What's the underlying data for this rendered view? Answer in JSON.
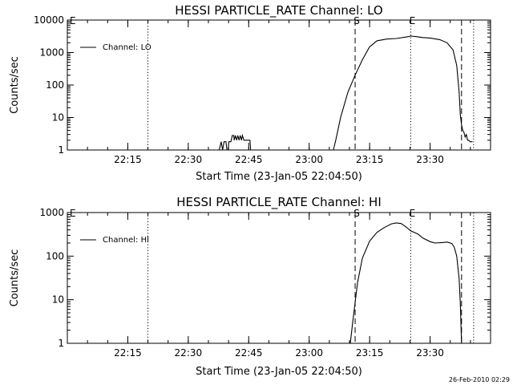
{
  "footer_timestamp": "26-Feb-2010 02:29",
  "chart_data": [
    {
      "type": "line",
      "title": "HESSI PARTICLE_RATE Channel: LO",
      "xlabel": "Start Time (23-Jan-05 22:04:50)",
      "ylabel": "Counts/sec",
      "y_scale": "log",
      "ylim": [
        1,
        10000
      ],
      "xlim_minutes": [
        22.0,
        23.75
      ],
      "x_ticks": [
        {
          "t": 22.25,
          "label": "22:15"
        },
        {
          "t": 22.5,
          "label": "22:30"
        },
        {
          "t": 22.75,
          "label": "22:45"
        },
        {
          "t": 23.0,
          "label": "23:00"
        },
        {
          "t": 23.25,
          "label": "23:15"
        },
        {
          "t": 23.5,
          "label": "23:30"
        }
      ],
      "y_ticks": [
        {
          "v": 1,
          "label": "1"
        },
        {
          "v": 10,
          "label": "10"
        },
        {
          "v": 100,
          "label": "100"
        },
        {
          "v": 1000,
          "label": "1000"
        },
        {
          "v": 10000,
          "label": "10000"
        }
      ],
      "legend": {
        "entry": "Channel: LO",
        "placement": "top-left"
      },
      "markers": [
        {
          "t": 22.333,
          "style": "dotted",
          "label": ""
        },
        {
          "t": 23.19,
          "style": "dashed",
          "label": "S"
        },
        {
          "t": 23.42,
          "style": "dotted",
          "label": "E"
        },
        {
          "t": 23.63,
          "style": "dashed",
          "label": ""
        },
        {
          "t": 23.68,
          "style": "dotted",
          "label": ""
        }
      ],
      "corner_mark": "E",
      "series": [
        {
          "name": "Channel: LO",
          "segments": [
            [
              [
                22.628,
                1
              ],
              [
                22.636,
                1.8
              ],
              [
                22.642,
                1
              ],
              [
                22.648,
                1.8
              ],
              [
                22.656,
                1.8
              ],
              [
                22.66,
                1
              ],
              [
                22.665,
                1
              ],
              [
                22.668,
                1.8
              ],
              [
                22.676,
                1.8
              ],
              [
                22.682,
                2.8
              ],
              [
                22.688,
                2.8
              ],
              [
                22.69,
                2.0
              ],
              [
                22.695,
                2.8
              ],
              [
                22.7,
                2.0
              ],
              [
                22.705,
                2.8
              ],
              [
                22.71,
                2.0
              ],
              [
                22.715,
                2.8
              ],
              [
                22.72,
                2.0
              ],
              [
                22.724,
                2.8
              ],
              [
                22.73,
                2.0
              ],
              [
                22.736,
                2.0
              ],
              [
                22.74,
                2.0
              ],
              [
                22.75,
                2.0
              ],
              [
                22.755,
                2.0
              ],
              [
                22.758,
                1
              ]
            ],
            [
              [
                23.1,
                1
              ],
              [
                23.11,
                2
              ],
              [
                23.13,
                10
              ],
              [
                23.16,
                60
              ],
              [
                23.19,
                200
              ],
              [
                23.22,
                600
              ],
              [
                23.25,
                1500
              ],
              [
                23.28,
                2300
              ],
              [
                23.32,
                2600
              ],
              [
                23.36,
                2700
              ],
              [
                23.4,
                3000
              ],
              [
                23.42,
                3200
              ],
              [
                23.44,
                3100
              ],
              [
                23.47,
                2900
              ],
              [
                23.5,
                2800
              ],
              [
                23.54,
                2500
              ],
              [
                23.57,
                2000
              ],
              [
                23.595,
                1200
              ],
              [
                23.61,
                400
              ],
              [
                23.62,
                60
              ],
              [
                23.625,
                12
              ],
              [
                23.63,
                6
              ],
              [
                23.635,
                4
              ],
              [
                23.64,
                3.5
              ],
              [
                23.645,
                2.5
              ],
              [
                23.65,
                3
              ],
              [
                23.655,
                2
              ],
              [
                23.66,
                2
              ],
              [
                23.665,
                1.8
              ],
              [
                23.675,
                1.8
              ]
            ]
          ]
        }
      ]
    },
    {
      "type": "line",
      "title": "HESSI PARTICLE_RATE Channel: HI",
      "xlabel": "Start Time (23-Jan-05 22:04:50)",
      "ylabel": "Counts/sec",
      "y_scale": "log",
      "ylim": [
        1,
        1000
      ],
      "xlim_minutes": [
        22.0,
        23.75
      ],
      "x_ticks": [
        {
          "t": 22.25,
          "label": "22:15"
        },
        {
          "t": 22.5,
          "label": "22:30"
        },
        {
          "t": 22.75,
          "label": "22:45"
        },
        {
          "t": 23.0,
          "label": "23:00"
        },
        {
          "t": 23.25,
          "label": "23:15"
        },
        {
          "t": 23.5,
          "label": "23:30"
        }
      ],
      "y_ticks": [
        {
          "v": 1,
          "label": "1"
        },
        {
          "v": 10,
          "label": "10"
        },
        {
          "v": 100,
          "label": "100"
        },
        {
          "v": 1000,
          "label": "1000"
        }
      ],
      "legend": {
        "entry": "Channel: HI",
        "placement": "top-left"
      },
      "markers": [
        {
          "t": 22.333,
          "style": "dotted",
          "label": ""
        },
        {
          "t": 23.19,
          "style": "dashed",
          "label": "S"
        },
        {
          "t": 23.42,
          "style": "dotted",
          "label": "E"
        },
        {
          "t": 23.63,
          "style": "dashed",
          "label": ""
        },
        {
          "t": 23.68,
          "style": "dotted",
          "label": ""
        }
      ],
      "corner_mark": "E",
      "series": [
        {
          "name": "Channel: HI",
          "segments": [
            [
              [
                23.17,
                1
              ],
              [
                23.18,
                3
              ],
              [
                23.2,
                25
              ],
              [
                23.22,
                90
              ],
              [
                23.25,
                220
              ],
              [
                23.28,
                350
              ],
              [
                23.31,
                450
              ],
              [
                23.34,
                550
              ],
              [
                23.36,
                580
              ],
              [
                23.38,
                560
              ],
              [
                23.4,
                470
              ],
              [
                23.42,
                380
              ],
              [
                23.45,
                320
              ],
              [
                23.47,
                260
              ],
              [
                23.5,
                215
              ],
              [
                23.52,
                200
              ],
              [
                23.55,
                205
              ],
              [
                23.57,
                210
              ],
              [
                23.59,
                195
              ],
              [
                23.6,
                160
              ],
              [
                23.61,
                100
              ],
              [
                23.62,
                30
              ],
              [
                23.625,
                8
              ],
              [
                23.63,
                1
              ]
            ]
          ]
        }
      ]
    }
  ]
}
